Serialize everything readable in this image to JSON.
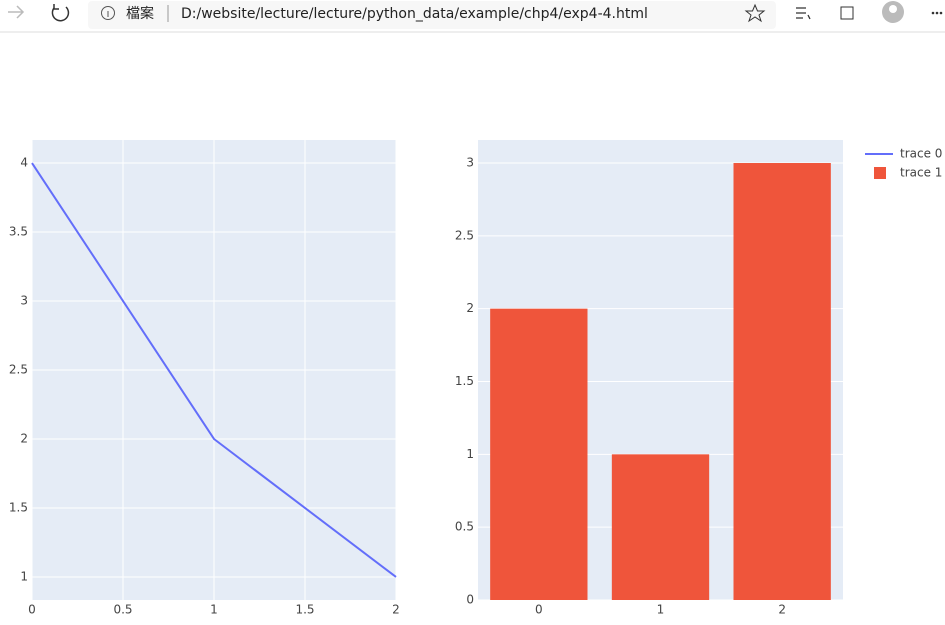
{
  "browser": {
    "file_label": "檔案",
    "url": "D:/website/lecture/lecture/python_data/example/chp4/exp4-4.html"
  },
  "chart_data": [
    {
      "type": "line",
      "x": [
        0,
        1,
        2
      ],
      "xlim": [
        0,
        2
      ],
      "xticks": [
        0,
        0.5,
        1,
        1.5,
        2
      ],
      "ylim": [
        0.833,
        4.167
      ],
      "yticks": [
        1,
        1.5,
        2,
        2.5,
        3,
        3.5,
        4
      ],
      "grid": "both",
      "series": [
        {
          "name": "trace 0",
          "color": "#636efa",
          "values": [
            4,
            2,
            1
          ]
        }
      ]
    },
    {
      "type": "bar",
      "x": [
        0,
        1,
        2
      ],
      "xlim": [
        -0.5,
        2.5
      ],
      "xticks": [
        0,
        1,
        2
      ],
      "ylim": [
        0,
        3.158
      ],
      "yticks": [
        0,
        0.5,
        1,
        1.5,
        2,
        2.5,
        3
      ],
      "grid": "y",
      "series": [
        {
          "name": "trace 1",
          "color": "#ef553b",
          "values": [
            2,
            1,
            3
          ]
        }
      ]
    }
  ]
}
